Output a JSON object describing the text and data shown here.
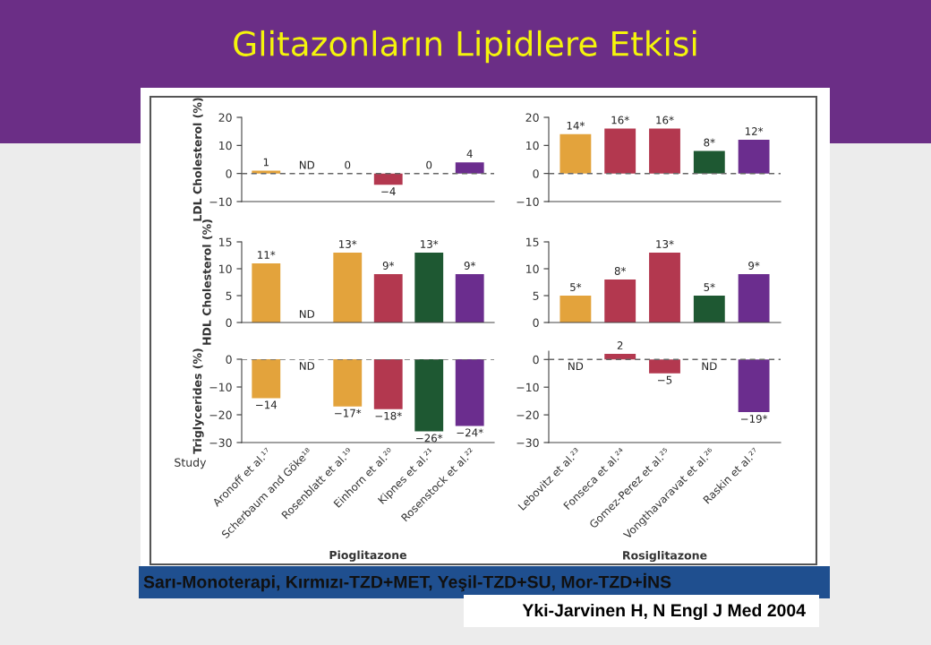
{
  "chart_data": [
    {
      "type": "bar",
      "title": "Glitazonların Lipidlere Etkisi",
      "annotations": [
        "Sarı-Monoterapi, Kırmızı-TZD+MET, Yeşil-TZD+SU, Mor-TZD+İNS",
        "Yki-Jarvinen H, N Engl J Med 2004"
      ],
      "ylabel": "LDL Cholesterol (%)",
      "categories": [
        null,
        null,
        null,
        null,
        null,
        null
      ],
      "values": [
        1,
        null,
        0,
        -4,
        0,
        4
      ],
      "colors": [
        "#e3a33c",
        null,
        "#e3a33c",
        "#b3384f",
        "#1e5832",
        "#6b2d8e"
      ],
      "value_labels": [
        "1",
        "ND",
        "0",
        "−4",
        "0",
        "4"
      ],
      "ylim": [
        -10,
        20
      ],
      "yticks": [
        {
          "value": -10,
          "label": "−10"
        },
        0,
        10,
        20
      ],
      "ref_lines": [
        {
          "axis": "y",
          "value": 0,
          "color": "#666666",
          "line_style": "dashed"
        }
      ]
    },
    {
      "type": "bar",
      "categories": [
        null,
        null,
        null,
        null,
        null
      ],
      "values": [
        14,
        16,
        16,
        8,
        12
      ],
      "colors": [
        "#e3a33c",
        "#b3384f",
        "#b3384f",
        "#1e5832",
        "#6b2d8e"
      ],
      "value_labels": [
        "14*",
        "16*",
        "16*",
        "8*",
        "12*"
      ],
      "ylim": [
        -10,
        20
      ],
      "yticks": [
        {
          "value": -10,
          "label": "−10"
        },
        0,
        10,
        20
      ],
      "ref_lines": [
        {
          "axis": "y",
          "value": 0,
          "color": "#666666",
          "line_style": "dashed"
        }
      ]
    },
    {
      "type": "bar",
      "ylabel": "HDL Cholesterol (%)",
      "categories": [
        null,
        null,
        null,
        null,
        null,
        null
      ],
      "values": [
        11,
        null,
        13,
        9,
        13,
        9
      ],
      "colors": [
        "#e3a33c",
        null,
        "#e3a33c",
        "#b3384f",
        "#1e5832",
        "#6b2d8e"
      ],
      "value_labels": [
        "11*",
        "ND",
        "13*",
        "9*",
        "13*",
        "9*"
      ],
      "ylim": [
        0,
        15
      ],
      "yticks": [
        0,
        5,
        10,
        15
      ]
    },
    {
      "type": "bar",
      "categories": [
        null,
        null,
        null,
        null,
        null
      ],
      "values": [
        5,
        8,
        13,
        5,
        9
      ],
      "colors": [
        "#e3a33c",
        "#b3384f",
        "#b3384f",
        "#1e5832",
        "#6b2d8e"
      ],
      "value_labels": [
        "5*",
        "8*",
        "13*",
        "5*",
        "9*"
      ],
      "ylim": [
        0,
        15
      ],
      "yticks": [
        0,
        5,
        10,
        15
      ]
    },
    {
      "type": "bar",
      "ylabel": "Triglycerides (%)",
      "xlabel": "Pioglitazone",
      "annotations": [
        "Study"
      ],
      "categories": [
        "Aronoff et al.¹⁷",
        "Scherbaum and Göke¹⁸",
        "Rosenblatt et al.¹⁹",
        "Einhorn et al.²⁰",
        "Kipnes et al.²¹",
        "Rosenstock et al.²²"
      ],
      "values": [
        -14,
        null,
        -17,
        -18,
        -26,
        -24
      ],
      "colors": [
        "#e3a33c",
        null,
        "#e3a33c",
        "#b3384f",
        "#1e5832",
        "#6b2d8e"
      ],
      "value_labels": [
        "−14",
        "ND",
        "−17*",
        "−18*",
        "−26*",
        "−24*"
      ],
      "ylim": [
        -30,
        0
      ],
      "yticks": [
        {
          "value": -30,
          "label": "−30"
        },
        {
          "value": -20,
          "label": "−20"
        },
        {
          "value": -10,
          "label": "−10"
        },
        0
      ],
      "ref_lines": [
        {
          "axis": "y",
          "value": 0,
          "color": "#666666",
          "line_style": "dashed"
        }
      ]
    },
    {
      "type": "bar",
      "xlabel": "Rosiglitazone",
      "categories": [
        "Lebovitz et al.²³",
        "Fonseca et al.²⁴",
        "Gomez-Perez et al.²⁵",
        "Vongthavaravat et al.²⁶",
        "Raskin et al.²⁷"
      ],
      "values": [
        null,
        2,
        -5,
        null,
        -19
      ],
      "colors": [
        null,
        "#b3384f",
        "#b3384f",
        null,
        "#6b2d8e"
      ],
      "value_labels": [
        "ND",
        "2",
        "−5",
        "ND",
        "−19*"
      ],
      "ylim": [
        -30,
        3
      ],
      "yticks": [
        {
          "value": -30,
          "label": "−30"
        },
        {
          "value": -20,
          "label": "−20"
        },
        {
          "value": -10,
          "label": "−10"
        },
        0
      ],
      "ref_lines": [
        {
          "axis": "y",
          "value": 0,
          "color": "#666666",
          "line_style": "dashed"
        }
      ]
    }
  ]
}
